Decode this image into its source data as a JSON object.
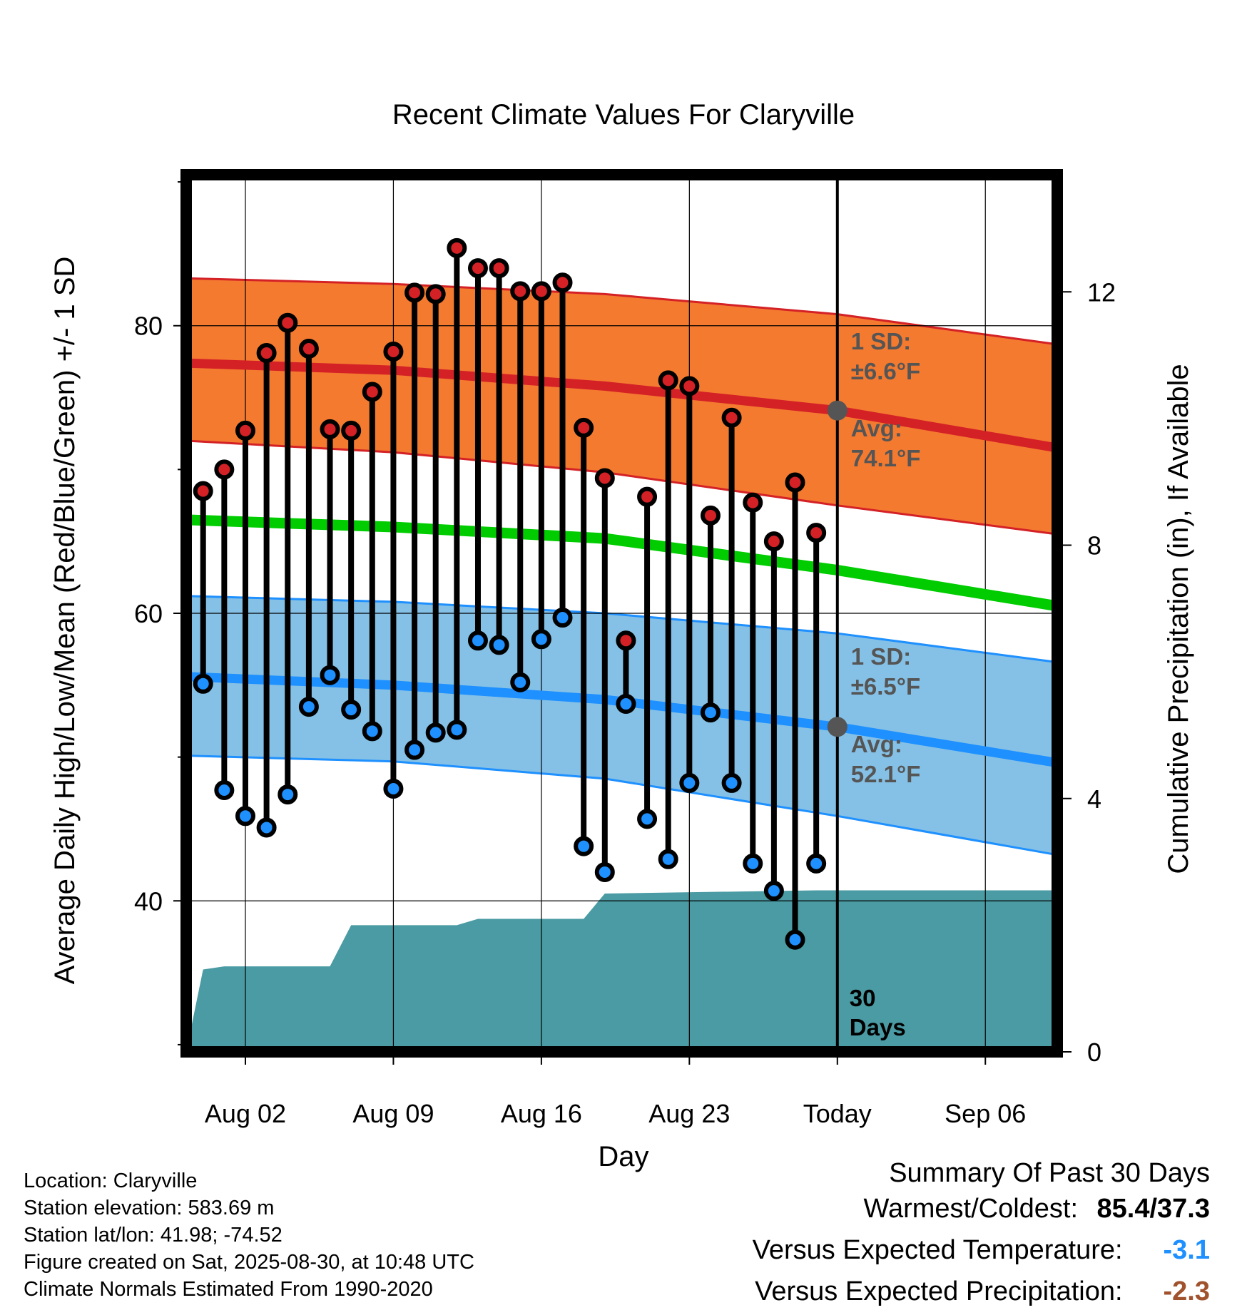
{
  "title": "Recent Climate Values For Claryville",
  "y_left_label": "Average Daily High/Low/Mean (Red/Blue/Green) +/- 1 SD",
  "y_right_label": "Cumulative Precipitation (in), If Available",
  "x_label": "Day",
  "today_label": "30 Days",
  "today_label_lines": [
    "30",
    "Days"
  ],
  "high_band": {
    "sd_label": "1 SD:",
    "sd_value": "±6.6°F",
    "avg_label": "Avg:",
    "avg_value": "74.1°F"
  },
  "low_band": {
    "sd_label": "1 SD:",
    "sd_value": "±6.5°F",
    "avg_label": "Avg:",
    "avg_value": "52.1°F"
  },
  "info": {
    "location": "Location: Claryville",
    "elevation": "Station elevation: 583.69 m",
    "latlon": "Station lat/lon: 41.98; -74.52",
    "created": "Figure created on Sat, 2025-08-30, at 10:48 UTC",
    "normals": "Climate Normals Estimated From 1990-2020"
  },
  "summary": {
    "heading": "Summary Of Past 30 Days",
    "warm_cold_label": "Warmest/Coldest:",
    "warm_cold_value": "85.4/37.3",
    "temp_label": "Versus Expected Temperature:",
    "temp_value": "-3.1",
    "precip_label": "Versus Expected Precipitation:",
    "precip_value": "-2.3"
  },
  "colors": {
    "high_band": "#F47A30",
    "high_line": "#D42126",
    "low_band": "#85C1E6",
    "low_line": "#1E90FF",
    "mean_line": "#00CC00",
    "precip": "#4A9BA3",
    "high_dot": "#D42126",
    "low_dot": "#1E90FF",
    "avg_marker": "#555555",
    "temp_anomaly": "#1E90FF",
    "precip_anomaly": "#A0522D"
  },
  "chart_data": {
    "type": "line",
    "x_ticks": [
      {
        "day": 3,
        "label": "Aug 02"
      },
      {
        "day": 10,
        "label": "Aug 09"
      },
      {
        "day": 17,
        "label": "Aug 16"
      },
      {
        "day": 24,
        "label": "Aug 23"
      },
      {
        "day": 31,
        "label": "Today"
      },
      {
        "day": 38,
        "label": "Sep 06"
      }
    ],
    "xlim": [
      0.2,
      41.4
    ],
    "today_day": 31,
    "ylim": [
      29.5,
      90.5
    ],
    "y_ticks": [
      40,
      60,
      80
    ],
    "y2lim": [
      0,
      13.85
    ],
    "y2_ticks": [
      0,
      4,
      8,
      12
    ],
    "days": [
      1,
      2,
      3,
      4,
      5,
      6,
      7,
      8,
      9,
      10,
      11,
      12,
      13,
      14,
      15,
      16,
      17,
      18,
      19,
      20,
      21,
      22,
      23,
      24,
      25,
      26,
      27,
      28,
      29,
      30
    ],
    "highs": [
      68.5,
      70.0,
      72.7,
      78.1,
      80.2,
      78.4,
      72.8,
      72.7,
      75.4,
      78.2,
      82.3,
      82.2,
      85.4,
      84.0,
      84.0,
      82.4,
      82.4,
      83.0,
      72.9,
      69.4,
      58.1,
      68.1,
      76.2,
      75.8,
      66.8,
      73.6,
      67.7,
      65.0,
      69.1,
      65.6
    ],
    "lows": [
      55.1,
      47.7,
      45.9,
      45.1,
      47.4,
      53.5,
      55.7,
      53.3,
      51.8,
      47.8,
      50.5,
      51.7,
      51.9,
      58.1,
      57.8,
      55.2,
      58.2,
      59.7,
      43.8,
      42.0,
      53.7,
      45.7,
      42.9,
      48.2,
      53.1,
      48.2,
      42.6,
      40.7,
      37.3,
      42.6
    ],
    "normal_high": [
      [
        0.2,
        77.4
      ],
      [
        10,
        76.9
      ],
      [
        20,
        75.8
      ],
      [
        31,
        74.1
      ],
      [
        41.4,
        71.5
      ]
    ],
    "normal_high_plus_sd": [
      [
        0.2,
        83.3
      ],
      [
        10,
        82.9
      ],
      [
        20,
        82.2
      ],
      [
        31,
        80.8
      ],
      [
        41.4,
        78.7
      ]
    ],
    "normal_high_minus_sd": [
      [
        0.2,
        72.0
      ],
      [
        10,
        71.2
      ],
      [
        20,
        69.8
      ],
      [
        31,
        67.5
      ],
      [
        41.4,
        65.5
      ]
    ],
    "normal_mean": [
      [
        0.2,
        66.5
      ],
      [
        10,
        66.0
      ],
      [
        20,
        65.2
      ],
      [
        31,
        63.0
      ],
      [
        41.4,
        60.5
      ]
    ],
    "normal_low": [
      [
        0.2,
        55.6
      ],
      [
        10,
        55.0
      ],
      [
        20,
        54.0
      ],
      [
        31,
        52.1
      ],
      [
        41.4,
        49.6
      ]
    ],
    "normal_low_plus_sd": [
      [
        0.2,
        61.2
      ],
      [
        10,
        60.8
      ],
      [
        20,
        60.0
      ],
      [
        31,
        58.6
      ],
      [
        41.4,
        56.6
      ]
    ],
    "normal_low_minus_sd": [
      [
        0.2,
        50.1
      ],
      [
        10,
        49.7
      ],
      [
        20,
        48.5
      ],
      [
        31,
        45.9
      ],
      [
        41.4,
        43.2
      ]
    ],
    "precip_cumulative": [
      [
        0.2,
        0.0
      ],
      [
        1,
        1.3
      ],
      [
        2,
        1.35
      ],
      [
        7,
        1.35
      ],
      [
        8,
        2.0
      ],
      [
        13,
        2.0
      ],
      [
        14,
        2.1
      ],
      [
        19,
        2.1
      ],
      [
        20,
        2.5
      ],
      [
        30,
        2.55
      ],
      [
        41.4,
        2.55
      ]
    ]
  }
}
